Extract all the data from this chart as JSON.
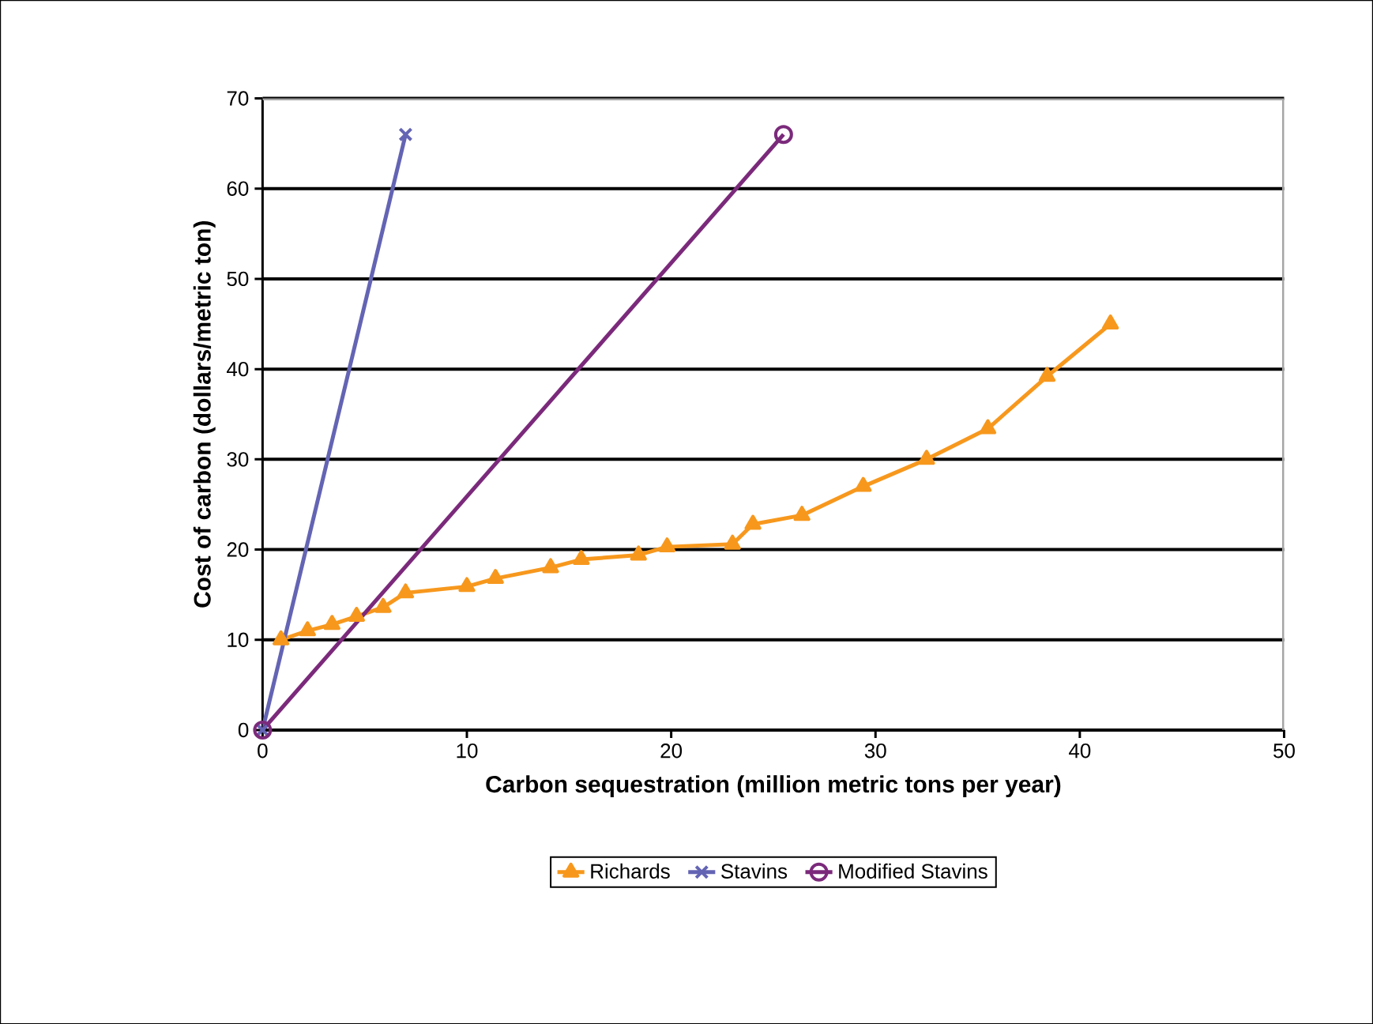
{
  "chart_data": {
    "type": "line",
    "xlabel": "Carbon sequestration (million metric tons per year)",
    "ylabel": "Cost of carbon (dollars/metric ton)",
    "xlim": [
      0,
      50
    ],
    "xticks": [
      0,
      10,
      20,
      30,
      40,
      50
    ],
    "ylim": [
      0,
      70
    ],
    "yticks": [
      0,
      10,
      20,
      30,
      40,
      50,
      60,
      70
    ],
    "grid": "y",
    "legend": "bottom",
    "series": [
      {
        "name": "Richards",
        "color": "#f7981d",
        "marker": "triangle",
        "x": [
          0.9,
          2.2,
          3.4,
          4.6,
          5.9,
          7.0,
          10.0,
          11.4,
          14.1,
          15.6,
          18.4,
          19.8,
          23.0,
          24.0,
          26.4,
          29.4,
          32.5,
          35.5,
          38.4,
          41.5
        ],
        "values": [
          10,
          11,
          11.7,
          12.6,
          13.6,
          15.2,
          15.9,
          16.8,
          18.0,
          18.9,
          19.4,
          20.3,
          20.6,
          22.8,
          23.8,
          27,
          30,
          33.4,
          39.2,
          45
        ]
      },
      {
        "name": "Stavins",
        "color": "#6464b4",
        "marker": "cross",
        "x": [
          0,
          7
        ],
        "values": [
          0,
          66
        ]
      },
      {
        "name": "Modified Stavins",
        "color": "#7b2a7b",
        "marker": "circle",
        "x": [
          0,
          25.5
        ],
        "values": [
          0,
          66
        ]
      }
    ]
  }
}
